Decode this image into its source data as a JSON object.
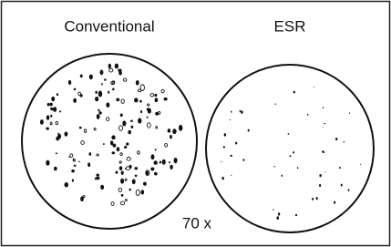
{
  "labels": {
    "left": "Conventional",
    "right": "ESR",
    "magnification": "70 x"
  }
}
